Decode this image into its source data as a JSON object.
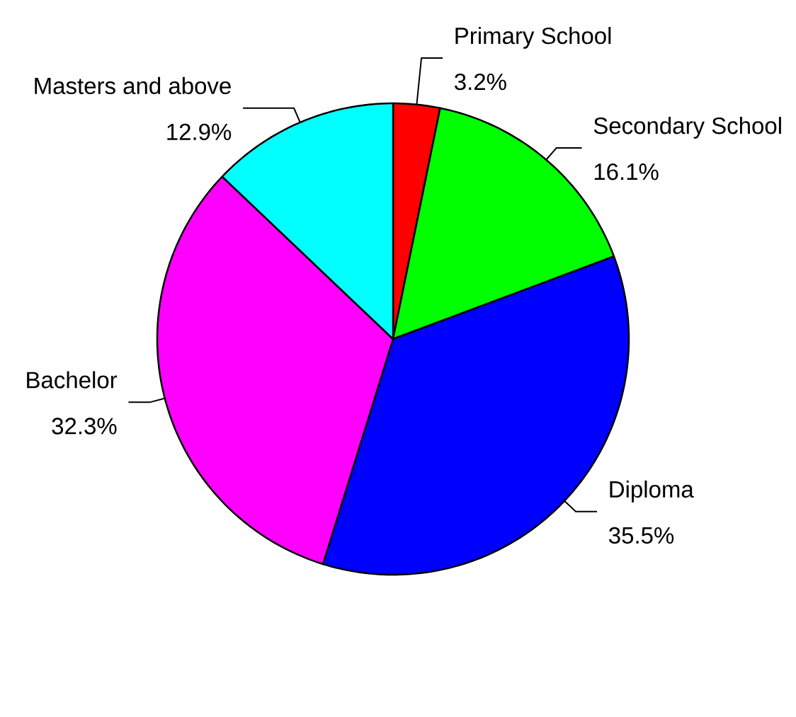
{
  "chart_data": {
    "type": "pie",
    "categories": [
      "Primary School",
      "Secondary School",
      "Diploma",
      "Bachelor",
      "Masters and above"
    ],
    "values": [
      3.2,
      16.1,
      35.5,
      32.3,
      12.9
    ],
    "value_labels": [
      "3.2%",
      "16.1%",
      "35.5%",
      "32.3%",
      "12.9%"
    ],
    "colors": [
      "#ff0000",
      "#00ff00",
      "#0000ff",
      "#ff00ff",
      "#00ffff"
    ]
  }
}
